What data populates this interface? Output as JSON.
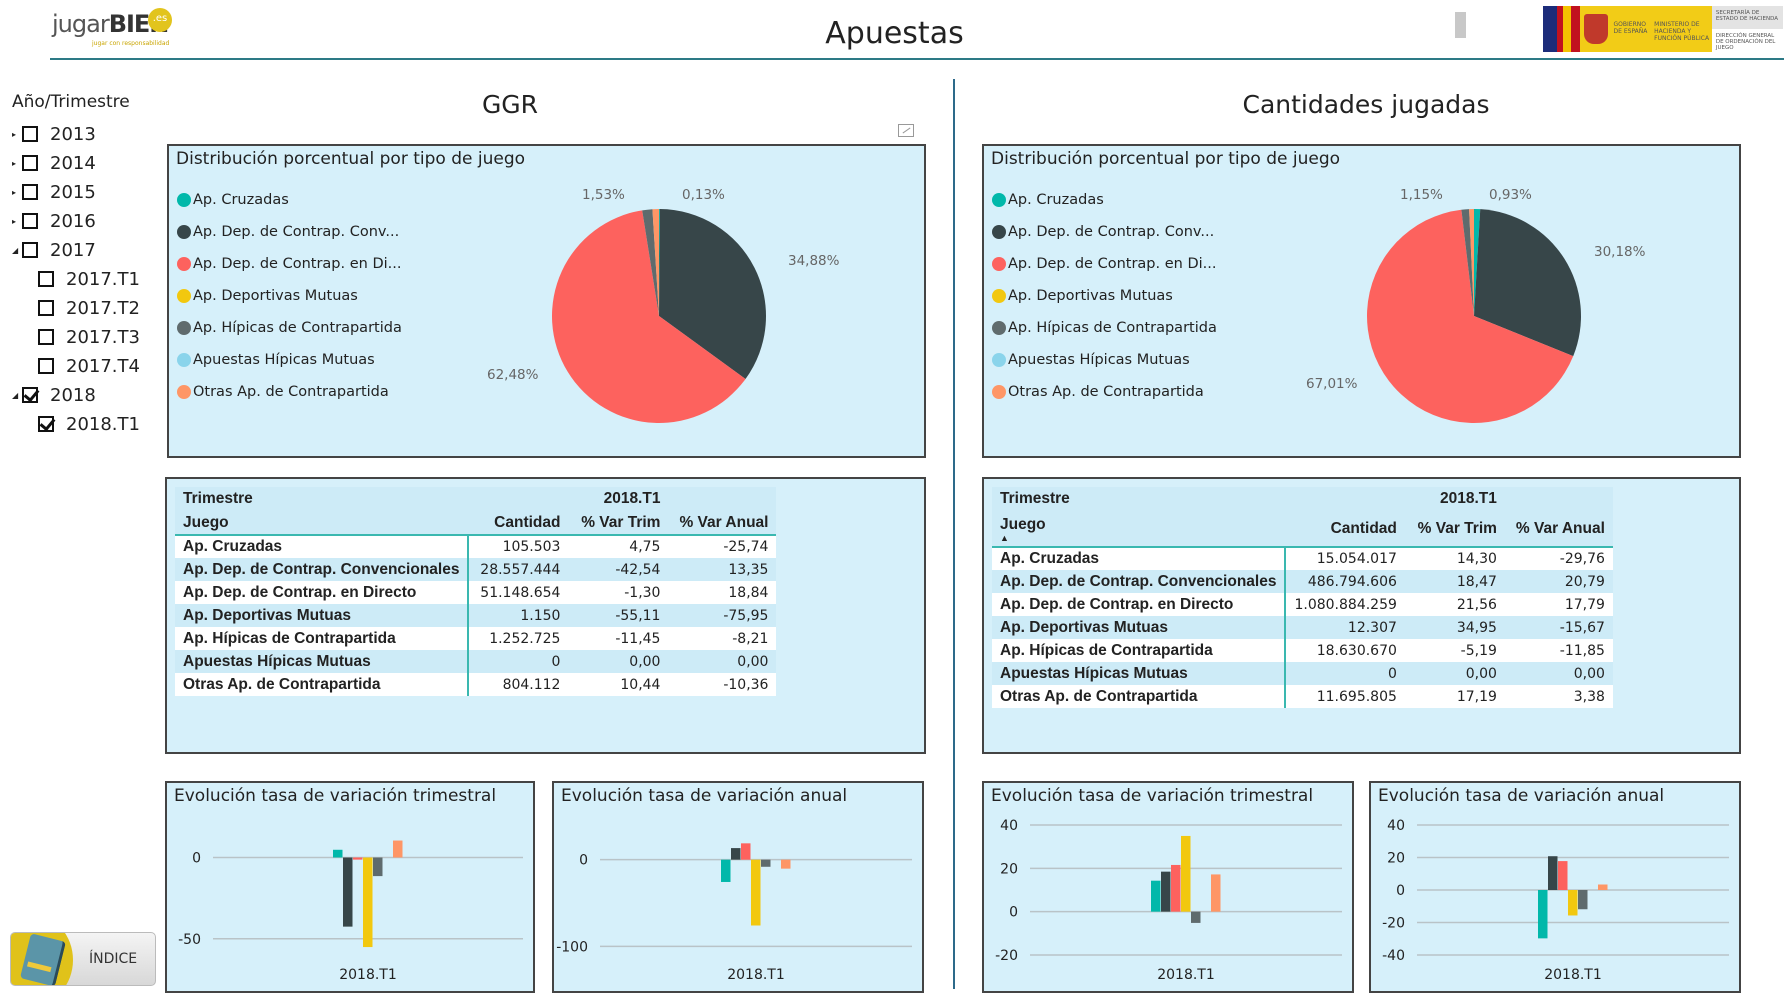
{
  "header": {
    "title": "Apuestas",
    "logo_text_light": "jugar",
    "logo_text_bold": "BIEN",
    "logo_badge": ".es",
    "logo_tagline": "jugar con responsabilidad",
    "gov_logo": {
      "gobierno": "GOBIERNO DE ESPAÑA",
      "ministerio": "MINISTERIO DE HACIENDA Y FUNCIÓN PÚBLICA",
      "secretaria": "SECRETARÍA DE ESTADO DE HACIENDA",
      "direccion": "DIRECCIÓN GENERAL DE ORDENACIÓN DEL JUEGO"
    }
  },
  "slicer": {
    "title": "Año/Trimestre",
    "items": [
      {
        "label": "2013",
        "level": 0,
        "expanded": false,
        "checked": false
      },
      {
        "label": "2014",
        "level": 0,
        "expanded": false,
        "checked": false
      },
      {
        "label": "2015",
        "level": 0,
        "expanded": false,
        "checked": false
      },
      {
        "label": "2016",
        "level": 0,
        "expanded": false,
        "checked": false
      },
      {
        "label": "2017",
        "level": 0,
        "expanded": true,
        "checked": false
      },
      {
        "label": "2017.T1",
        "level": 1,
        "checked": false
      },
      {
        "label": "2017.T2",
        "level": 1,
        "checked": false
      },
      {
        "label": "2017.T3",
        "level": 1,
        "checked": false
      },
      {
        "label": "2017.T4",
        "level": 1,
        "checked": false
      },
      {
        "label": "2018",
        "level": 0,
        "expanded": true,
        "checked": true
      },
      {
        "label": "2018.T1",
        "level": 1,
        "checked": true
      }
    ]
  },
  "indice_button": {
    "label": "ÍNDICE"
  },
  "legend": [
    {
      "label": "Ap. Cruzadas",
      "color": "#01b8aa"
    },
    {
      "label": "Ap. Dep. de Contrap. Conv...",
      "color": "#374649"
    },
    {
      "label": "Ap. Dep. de Contrap. en Di...",
      "color": "#fd625e"
    },
    {
      "label": "Ap. Deportivas Mutuas",
      "color": "#f2c80f"
    },
    {
      "label": "Ap. Hípicas de Contrapartida",
      "color": "#5f6b6d"
    },
    {
      "label": "Apuestas Hípicas Mutuas",
      "color": "#8ad4eb"
    },
    {
      "label": "Otras Ap. de Contrapartida",
      "color": "#fe9666"
    }
  ],
  "sections": [
    {
      "title": "GGR",
      "pie_title": "Distribución porcentual por tipo de juego",
      "table": {
        "corner_row1": "Trimestre",
        "corner_row2": "Juego",
        "period": "2018.T1",
        "columns": [
          "Cantidad",
          "% Var Trim",
          "% Var Anual"
        ],
        "sort_indicator": false,
        "rows": [
          [
            "Ap. Cruzadas",
            "105.503",
            "4,75",
            "-25,74"
          ],
          [
            "Ap. Dep. de Contrap. Convencionales",
            "28.557.444",
            "-42,54",
            "13,35"
          ],
          [
            "Ap. Dep. de Contrap. en Directo",
            "51.148.654",
            "-1,30",
            "18,84"
          ],
          [
            "Ap. Deportivas Mutuas",
            "1.150",
            "-55,11",
            "-75,95"
          ],
          [
            "Ap. Hípicas de Contrapartida",
            "1.252.725",
            "-11,45",
            "-8,21"
          ],
          [
            "Apuestas Hípicas Mutuas",
            "0",
            "0,00",
            "0,00"
          ],
          [
            "Otras Ap. de Contrapartida",
            "804.112",
            "10,44",
            "-10,36"
          ]
        ]
      }
    },
    {
      "title": "Cantidades jugadas",
      "pie_title": "Distribución porcentual por tipo de juego",
      "table": {
        "corner_row1": "Trimestre",
        "corner_row2": "Juego",
        "period": "2018.T1",
        "columns": [
          "Cantidad",
          "% Var Trim",
          "% Var Anual"
        ],
        "sort_indicator": true,
        "rows": [
          [
            "Ap. Cruzadas",
            "15.054.017",
            "14,30",
            "-29,76"
          ],
          [
            "Ap. Dep. de Contrap. Convencionales",
            "486.794.606",
            "18,47",
            "20,79"
          ],
          [
            "Ap. Dep. de Contrap. en Directo",
            "1.080.884.259",
            "21,56",
            "17,79"
          ],
          [
            "Ap. Deportivas Mutuas",
            "12.307",
            "34,95",
            "-15,67"
          ],
          [
            "Ap. Hípicas de Contrapartida",
            "18.630.670",
            "-5,19",
            "-11,85"
          ],
          [
            "Apuestas Hípicas Mutuas",
            "0",
            "0,00",
            "0,00"
          ],
          [
            "Otras Ap. de Contrapartida",
            "11.695.805",
            "17,19",
            "3,38"
          ]
        ]
      }
    }
  ],
  "chart_data": [
    {
      "id": "ggr-pie",
      "type": "pie",
      "title": "Distribución porcentual por tipo de juego",
      "legend_position": "left",
      "categories": [
        "Ap. Cruzadas",
        "Ap. Dep. de Contrap. Convencionales",
        "Ap. Dep. de Contrap. en Directo",
        "Ap. Deportivas Mutuas",
        "Ap. Hípicas de Contrapartida",
        "Apuestas Hípicas Mutuas",
        "Otras Ap. de Contrapartida"
      ],
      "values": [
        0.13,
        34.88,
        62.48,
        0.0014,
        1.53,
        0,
        0.98
      ],
      "data_labels": [
        {
          "text": "0,13%",
          "category": "Ap. Cruzadas"
        },
        {
          "text": "34,88%",
          "category": "Ap. Dep. de Contrap. Convencionales"
        },
        {
          "text": "62,48%",
          "category": "Ap. Dep. de Contrap. en Directo"
        },
        {
          "text": "1,53%",
          "category": "Ap. Hípicas de Contrapartida"
        }
      ]
    },
    {
      "id": "cj-pie",
      "type": "pie",
      "title": "Distribución porcentual por tipo de juego",
      "legend_position": "left",
      "categories": [
        "Ap. Cruzadas",
        "Ap. Dep. de Contrap. Convencionales",
        "Ap. Dep. de Contrap. en Directo",
        "Ap. Deportivas Mutuas",
        "Ap. Hípicas de Contrapartida",
        "Apuestas Hípicas Mutuas",
        "Otras Ap. de Contrapartida"
      ],
      "values": [
        0.93,
        30.18,
        67.01,
        0.0008,
        1.15,
        0,
        0.73
      ],
      "data_labels": [
        {
          "text": "0,93%",
          "category": "Ap. Cruzadas"
        },
        {
          "text": "30,18%",
          "category": "Ap. Dep. de Contrap. Convencionales"
        },
        {
          "text": "67,01%",
          "category": "Ap. Dep. de Contrap. en Directo"
        },
        {
          "text": "1,15%",
          "category": "Ap. Hípicas de Contrapartida"
        }
      ]
    },
    {
      "id": "ggr-trim",
      "type": "bar",
      "title": "Evolución tasa de variación trimestral",
      "categories": [
        "2018.T1"
      ],
      "series": [
        {
          "name": "Ap. Cruzadas",
          "values": [
            4.75
          ]
        },
        {
          "name": "Ap. Dep. de Contrap. Convencionales",
          "values": [
            -42.54
          ]
        },
        {
          "name": "Ap. Dep. de Contrap. en Directo",
          "values": [
            -1.3
          ]
        },
        {
          "name": "Ap. Deportivas Mutuas",
          "values": [
            -55.11
          ]
        },
        {
          "name": "Ap. Hípicas de Contrapartida",
          "values": [
            -11.45
          ]
        },
        {
          "name": "Apuestas Hípicas Mutuas",
          "values": [
            0
          ]
        },
        {
          "name": "Otras Ap. de Contrapartida",
          "values": [
            10.44
          ]
        }
      ],
      "yticks": [
        0,
        -50
      ],
      "ylim": [
        -60,
        20
      ]
    },
    {
      "id": "ggr-anual",
      "type": "bar",
      "title": "Evolución tasa de variación anual",
      "categories": [
        "2018.T1"
      ],
      "series": [
        {
          "name": "Ap. Cruzadas",
          "values": [
            -25.74
          ]
        },
        {
          "name": "Ap. Dep. de Contrap. Convencionales",
          "values": [
            13.35
          ]
        },
        {
          "name": "Ap. Dep. de Contrap. en Directo",
          "values": [
            18.84
          ]
        },
        {
          "name": "Ap. Deportivas Mutuas",
          "values": [
            -75.95
          ]
        },
        {
          "name": "Ap. Hípicas de Contrapartida",
          "values": [
            -8.21
          ]
        },
        {
          "name": "Apuestas Hípicas Mutuas",
          "values": [
            0
          ]
        },
        {
          "name": "Otras Ap. de Contrapartida",
          "values": [
            -10.36
          ]
        }
      ],
      "yticks": [
        0,
        -100
      ],
      "ylim": [
        -110,
        40
      ]
    },
    {
      "id": "cj-trim",
      "type": "bar",
      "title": "Evolución tasa de variación trimestral",
      "categories": [
        "2018.T1"
      ],
      "series": [
        {
          "name": "Ap. Cruzadas",
          "values": [
            14.3
          ]
        },
        {
          "name": "Ap. Dep. de Contrap. Convencionales",
          "values": [
            18.47
          ]
        },
        {
          "name": "Ap. Dep. de Contrap. en Directo",
          "values": [
            21.56
          ]
        },
        {
          "name": "Ap. Deportivas Mutuas",
          "values": [
            34.95
          ]
        },
        {
          "name": "Ap. Hípicas de Contrapartida",
          "values": [
            -5.19
          ]
        },
        {
          "name": "Apuestas Hípicas Mutuas",
          "values": [
            0
          ]
        },
        {
          "name": "Otras Ap. de Contrapartida",
          "values": [
            17.19
          ]
        }
      ],
      "yticks": [
        40,
        20,
        0,
        -20
      ],
      "ylim": [
        -20,
        40
      ]
    },
    {
      "id": "cj-anual",
      "type": "bar",
      "title": "Evolución tasa de variación anual",
      "categories": [
        "2018.T1"
      ],
      "series": [
        {
          "name": "Ap. Cruzadas",
          "values": [
            -29.76
          ]
        },
        {
          "name": "Ap. Dep. de Contrap. Convencionales",
          "values": [
            20.79
          ]
        },
        {
          "name": "Ap. Dep. de Contrap. en Directo",
          "values": [
            17.79
          ]
        },
        {
          "name": "Ap. Deportivas Mutuas",
          "values": [
            -15.67
          ]
        },
        {
          "name": "Ap. Hípicas de Contrapartida",
          "values": [
            -11.85
          ]
        },
        {
          "name": "Apuestas Hípicas Mutuas",
          "values": [
            0
          ]
        },
        {
          "name": "Otras Ap. de Contrapartida",
          "values": [
            3.38
          ]
        }
      ],
      "yticks": [
        40,
        20,
        0,
        -20,
        -40
      ],
      "ylim": [
        -40,
        40
      ]
    }
  ]
}
